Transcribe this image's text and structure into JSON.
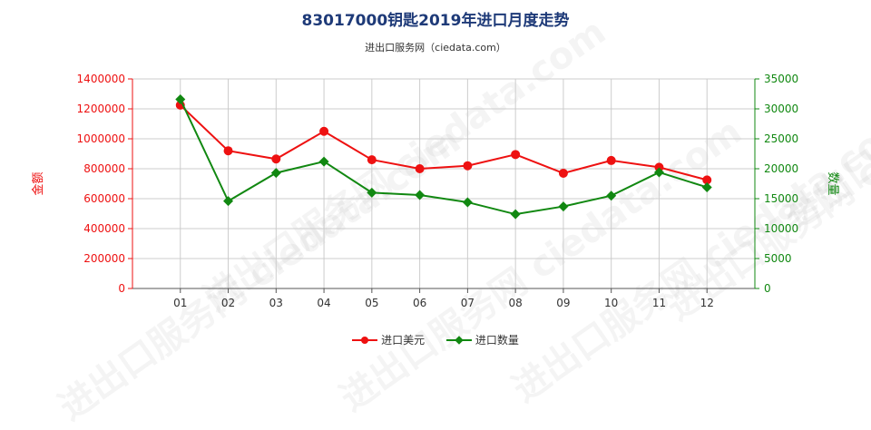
{
  "title": "83017000钥匙2019年进口月度走势",
  "subtitle": "进出口服务网（ciedata.com）",
  "watermark_text": "进出口服务网 ciedata.com",
  "colors": {
    "amount": "#ee1111",
    "quantity": "#118811",
    "grid": "#cccccc",
    "title": "#1e3a78"
  },
  "chart_data": {
    "type": "line",
    "categories": [
      "01",
      "02",
      "03",
      "04",
      "05",
      "06",
      "07",
      "08",
      "09",
      "10",
      "11",
      "12"
    ],
    "y_left": {
      "label": "金额",
      "min": 0,
      "max": 1400000,
      "ticks": [
        0,
        200000,
        400000,
        600000,
        800000,
        1000000,
        1200000,
        1400000
      ]
    },
    "y_right": {
      "label": "数量",
      "min": 0,
      "max": 35000,
      "ticks": [
        0,
        5000,
        10000,
        15000,
        20000,
        25000,
        30000,
        35000
      ]
    },
    "series": [
      {
        "name": "进口美元",
        "axis": "left",
        "color": "#ee1111",
        "marker": "circle",
        "values": [
          1225000,
          920000,
          865000,
          1050000,
          860000,
          800000,
          820000,
          895000,
          770000,
          855000,
          810000,
          725000
        ]
      },
      {
        "name": "进口数量",
        "axis": "right",
        "color": "#118811",
        "marker": "diamond",
        "values": [
          31600,
          14600,
          19300,
          21200,
          16000,
          15600,
          14400,
          12400,
          13700,
          15500,
          19400,
          16900
        ]
      }
    ],
    "grid": true,
    "legend_position": "bottom-center"
  }
}
